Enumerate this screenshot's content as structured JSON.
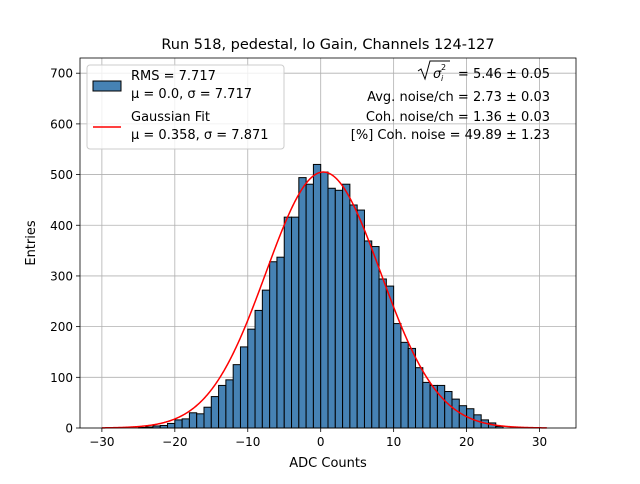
{
  "chart_data": {
    "type": "bar",
    "title": "Run 518, pedestal, lo Gain, Channels 124-127",
    "xlabel": "ADC Counts",
    "ylabel": "Entries",
    "xlim": [
      -33,
      35
    ],
    "ylim": [
      0,
      730
    ],
    "grid": true,
    "xticks": [
      -30,
      -20,
      -10,
      0,
      10,
      20,
      30
    ],
    "xtick_labels": [
      "−30",
      "−20",
      "−10",
      "0",
      "10",
      "20",
      "30"
    ],
    "yticks": [
      0,
      100,
      200,
      300,
      400,
      500,
      600,
      700
    ],
    "ytick_labels": [
      "0",
      "100",
      "200",
      "300",
      "400",
      "500",
      "600",
      "700"
    ],
    "bin_width": 1,
    "bins_x": [
      -25,
      -24,
      -23,
      -22,
      -21,
      -20,
      -19,
      -18,
      -17,
      -16,
      -15,
      -14,
      -13,
      -12,
      -11,
      -10,
      -9,
      -8,
      -7,
      -6,
      -5,
      -4,
      -3,
      -2,
      -1,
      0,
      1,
      2,
      3,
      4,
      5,
      6,
      7,
      8,
      9,
      10,
      11,
      12,
      13,
      14,
      15,
      16,
      17,
      18,
      19,
      20,
      21,
      22,
      23,
      24
    ],
    "histogram_values": [
      1,
      2,
      4,
      5,
      9,
      16,
      18,
      30,
      28,
      41,
      62,
      84,
      95,
      125,
      160,
      195,
      232,
      272,
      328,
      337,
      416,
      416,
      494,
      481,
      520,
      505,
      473,
      469,
      481,
      440,
      430,
      369,
      358,
      294,
      280,
      206,
      169,
      157,
      119,
      90,
      84,
      84,
      72,
      57,
      44,
      38,
      26,
      16,
      10,
      3
    ],
    "fit": {
      "mu": 0.358,
      "sigma": 7.871,
      "amplitude": 505,
      "x_range": [
        -30,
        31
      ]
    },
    "legend": {
      "position": "upper left",
      "entries": [
        {
          "label_line1": "RMS = 7.717",
          "label_line2": "μ = 0.0, σ = 7.717",
          "kind": "histogram"
        },
        {
          "label_line1": "Gaussian Fit",
          "label_line2": "μ = 0.358, σ = 7.871",
          "kind": "line"
        }
      ]
    },
    "annotations": {
      "line1": "= 5.46 ± 0.05",
      "line2": "Avg. noise/ch = 2.73 ± 0.03",
      "line3": "Coh. noise/ch = 1.36 ± 0.03",
      "line4": "[%] Coh. noise = 49.89 ± 1.23"
    },
    "colors": {
      "bar_fill": "#4682b4",
      "bar_edge": "#000000",
      "fit_line": "#ff0000",
      "grid": "#b0b0b0"
    }
  }
}
